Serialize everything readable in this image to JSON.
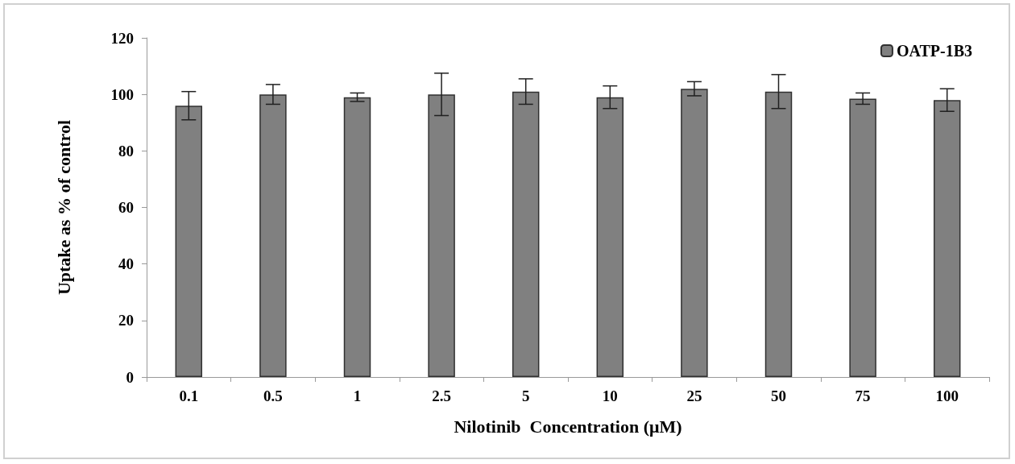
{
  "chart_data": {
    "type": "bar",
    "xlabel": "Nilotinib  Concentration (μM)",
    "ylabel": "Uptake as % of control",
    "categories": [
      "0.1",
      "0.5",
      "1",
      "2.5",
      "5",
      "10",
      "25",
      "50",
      "75",
      "100"
    ],
    "series": [
      {
        "name": "OATP-1B3",
        "color": "#808080",
        "values": [
          96,
          100,
          99,
          100,
          101,
          99,
          102,
          101,
          98.5,
          98
        ],
        "errors": [
          5,
          3.5,
          1.5,
          7.5,
          4.5,
          4,
          2.5,
          6,
          2,
          4
        ]
      }
    ],
    "ylim": [
      0,
      120
    ],
    "yticks": [
      0,
      20,
      40,
      60,
      80,
      100,
      120
    ],
    "grid": false,
    "legend": "top right"
  }
}
